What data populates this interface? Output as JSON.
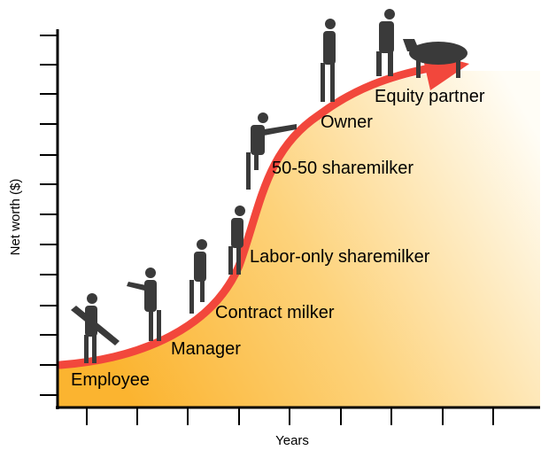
{
  "axes": {
    "x_label": "Years",
    "y_label": "Net worth ($)"
  },
  "stages": [
    "Employee",
    "Manager",
    "Contract milker",
    "Labor-only sharemilker",
    "50-50 sharemilker",
    "Owner",
    "Equity partner"
  ]
}
